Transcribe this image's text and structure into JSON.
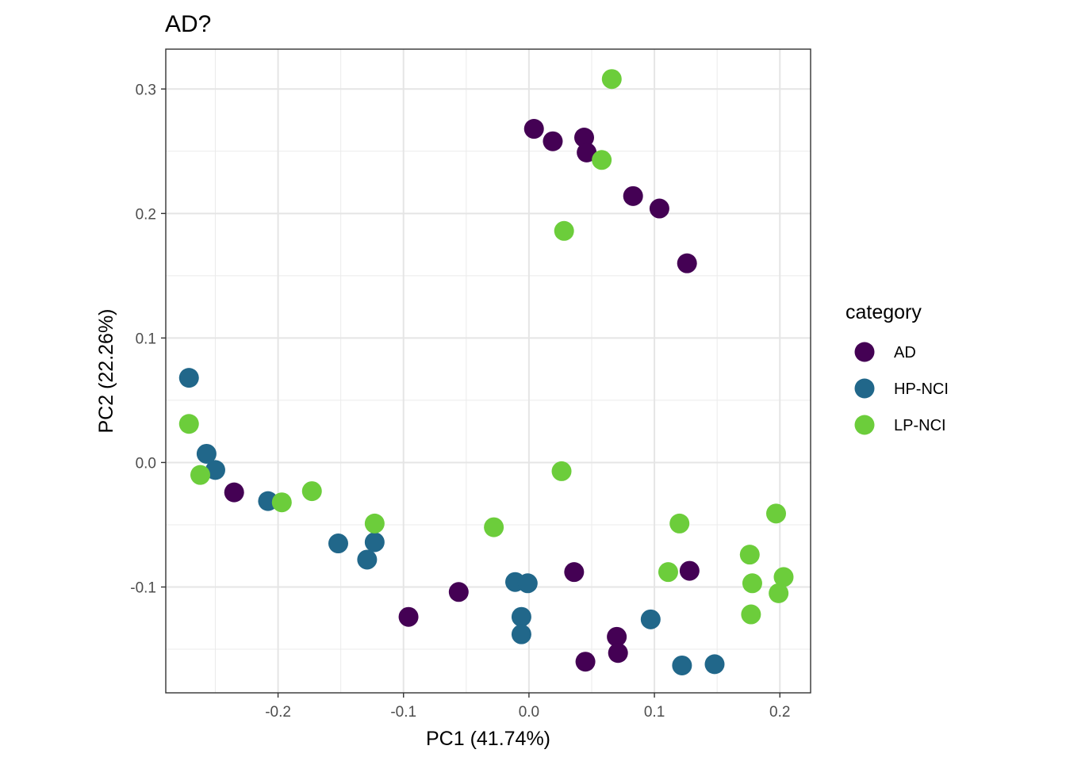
{
  "chart_data": {
    "type": "scatter",
    "title": "AD?",
    "xlabel": "PC1 (41.74%)",
    "ylabel": "PC2 (22.26%)",
    "xlim": [
      -0.2895,
      0.2245
    ],
    "ylim": [
      -0.185,
      0.332
    ],
    "x_ticks": [
      -0.2,
      -0.1,
      0.0,
      0.1,
      0.2
    ],
    "x_tick_labels": [
      "-0.2",
      "-0.1",
      "0.0",
      "0.1",
      "0.2"
    ],
    "y_ticks": [
      -0.1,
      0.0,
      0.1,
      0.2,
      0.3
    ],
    "y_tick_labels": [
      "-0.1",
      "0.0",
      "0.1",
      "0.2",
      "0.3"
    ],
    "grid": true,
    "legend": {
      "title": "category",
      "placement": "right"
    },
    "series": [
      {
        "name": "AD",
        "color": "#440154",
        "points": [
          [
            0.004,
            0.268
          ],
          [
            0.019,
            0.258
          ],
          [
            0.044,
            0.261
          ],
          [
            0.046,
            0.249
          ],
          [
            0.083,
            0.214
          ],
          [
            0.104,
            0.204
          ],
          [
            0.126,
            0.16
          ],
          [
            -0.235,
            -0.024
          ],
          [
            -0.096,
            -0.124
          ],
          [
            -0.056,
            -0.104
          ],
          [
            0.036,
            -0.088
          ],
          [
            0.128,
            -0.087
          ],
          [
            0.07,
            -0.14
          ],
          [
            0.071,
            -0.153
          ],
          [
            0.045,
            -0.16
          ]
        ]
      },
      {
        "name": "HP-NCI",
        "color": "#21678a",
        "points": [
          [
            -0.271,
            0.068
          ],
          [
            -0.257,
            0.007
          ],
          [
            -0.25,
            -0.006
          ],
          [
            -0.208,
            -0.031
          ],
          [
            -0.152,
            -0.065
          ],
          [
            -0.123,
            -0.064
          ],
          [
            -0.129,
            -0.078
          ],
          [
            -0.011,
            -0.096
          ],
          [
            -0.001,
            -0.097
          ],
          [
            -0.006,
            -0.124
          ],
          [
            -0.006,
            -0.138
          ],
          [
            0.097,
            -0.126
          ],
          [
            0.122,
            -0.163
          ],
          [
            0.148,
            -0.162
          ]
        ]
      },
      {
        "name": "LP-NCI",
        "color": "#6ccd3b",
        "points": [
          [
            0.066,
            0.308
          ],
          [
            0.058,
            0.243
          ],
          [
            0.028,
            0.186
          ],
          [
            -0.271,
            0.031
          ],
          [
            -0.262,
            -0.01
          ],
          [
            -0.197,
            -0.032
          ],
          [
            -0.173,
            -0.023
          ],
          [
            -0.123,
            -0.049
          ],
          [
            -0.028,
            -0.052
          ],
          [
            0.026,
            -0.007
          ],
          [
            0.12,
            -0.049
          ],
          [
            0.111,
            -0.088
          ],
          [
            0.197,
            -0.041
          ],
          [
            0.176,
            -0.074
          ],
          [
            0.178,
            -0.097
          ],
          [
            0.203,
            -0.092
          ],
          [
            0.199,
            -0.105
          ],
          [
            0.177,
            -0.122
          ]
        ]
      }
    ]
  }
}
